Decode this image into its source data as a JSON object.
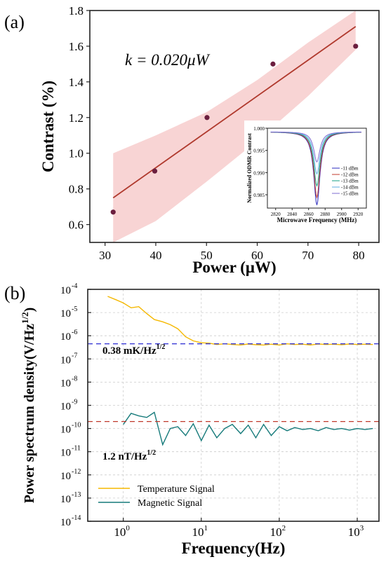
{
  "panel_a": {
    "label": "(a)",
    "annotation": "k = 0.020μW"
  },
  "panel_b": {
    "label": "(b)",
    "annotation_temperature": "0.38 mK/Hz",
    "annotation_magnetic": "1.2 nT/Hz",
    "annotation_sup": "1/2"
  },
  "chart_data": [
    {
      "type": "scatter",
      "id": "contrast_vs_power",
      "xlabel": "Power (μW)",
      "ylabel": "Contrast (%)",
      "xlim": [
        27,
        84
      ],
      "ylim": [
        0.5,
        1.8
      ],
      "xticks": [
        30,
        40,
        50,
        60,
        70,
        80
      ],
      "yticks": [
        0.6,
        0.8,
        1.0,
        1.2,
        1.4,
        1.6,
        1.8
      ],
      "points": [
        {
          "x": 31.6,
          "y": 0.67
        },
        {
          "x": 39.8,
          "y": 0.9
        },
        {
          "x": 50.1,
          "y": 1.2
        },
        {
          "x": 63.1,
          "y": 1.5
        },
        {
          "x": 79.4,
          "y": 1.6
        }
      ],
      "fit": {
        "x": [
          31.6,
          79.4
        ],
        "y": [
          0.75,
          1.71
        ],
        "color": "#b03a2e"
      },
      "band": {
        "x": [
          31.6,
          40,
          50,
          60,
          70,
          79.4
        ],
        "upper": [
          1.0,
          1.1,
          1.23,
          1.41,
          1.62,
          1.83
        ],
        "lower": [
          0.5,
          0.62,
          0.84,
          1.07,
          1.32,
          1.58
        ],
        "color": "#f6c9c9"
      },
      "point_color": "#6b1f3f"
    },
    {
      "type": "line",
      "id": "inset_odmr",
      "xlabel": "Microwave Frequency (MHz)",
      "ylabel": "Normalized ODMR Contrast",
      "xlim": [
        2810,
        2930
      ],
      "ylim": [
        0.982,
        1.0
      ],
      "xticks": [
        2820,
        2840,
        2860,
        2880,
        2900,
        2920
      ],
      "yticks": [
        0.985,
        0.99,
        0.995,
        1.0
      ],
      "ytick_labels": [
        "0.985",
        "0.990",
        "0.995",
        "1.000"
      ],
      "center": 2870,
      "series": [
        {
          "name": "-11 dBm",
          "depth": 0.0165,
          "color": "#2b2bbf"
        },
        {
          "name": "-12 dBm",
          "depth": 0.0148,
          "color": "#c0392b"
        },
        {
          "name": "-13 dBm",
          "depth": 0.0122,
          "color": "#16a085"
        },
        {
          "name": "-14 dBm",
          "depth": 0.0095,
          "color": "#5dade2"
        },
        {
          "name": "-15 dBm",
          "depth": 0.0068,
          "color": "#7d6bd1"
        }
      ]
    },
    {
      "type": "line",
      "id": "psd",
      "xlabel": "Frequency(Hz)",
      "ylabel": "Power spectrum density(V/Hz",
      "ylabel_sup": "1/2",
      "ylabel_end": ")",
      "xscale": "log",
      "yscale": "log",
      "xlim": [
        0.35,
        1900
      ],
      "ylim": [
        1e-14,
        0.0001
      ],
      "xticks": [
        1,
        10,
        100,
        1000
      ],
      "xtick_bases": [
        "10",
        "10",
        "10",
        "10"
      ],
      "xtick_exps": [
        "0",
        "1",
        "2",
        "3"
      ],
      "yticks": [
        1e-14,
        1e-13,
        1e-12,
        1e-11,
        1e-10,
        1e-09,
        1e-08,
        1e-07,
        1e-06,
        1e-05,
        0.0001
      ],
      "ytick_exps": [
        "-14",
        "-13",
        "-12",
        "-11",
        "-10",
        "-9",
        "-8",
        "-7",
        "-6",
        "-5",
        "-4"
      ],
      "grid": true,
      "legend_position": "bottom-left",
      "reference_lines": [
        {
          "y": 4.5e-07,
          "color": "#3b3bd6"
        },
        {
          "y": 2e-10,
          "color": "#c0392b"
        }
      ],
      "series": [
        {
          "name": "Temperature Signal",
          "color": "#f5b800",
          "x": [
            0.63,
            0.8,
            1.0,
            1.26,
            1.58,
            2.0,
            2.5,
            3.2,
            4.0,
            5.0,
            6.3,
            7.9,
            10,
            12.6,
            15.8,
            20,
            25,
            32,
            40,
            50,
            63,
            79,
            100,
            126,
            158,
            200,
            251,
            316,
            398,
            500,
            631,
            794,
            1000,
            1259,
            1585
          ],
          "y": [
            5e-05,
            3.6e-05,
            2.6e-05,
            1.6e-05,
            1.8e-05,
            9e-06,
            5e-06,
            4e-06,
            3e-06,
            2e-06,
            9e-07,
            6e-07,
            5e-07,
            4.8e-07,
            4.2e-07,
            4.5e-07,
            4.2e-07,
            4e-07,
            4.4e-07,
            4.1e-07,
            4e-07,
            4.3e-07,
            4e-07,
            4.5e-07,
            4.2e-07,
            4.3e-07,
            4e-07,
            4.4e-07,
            4.2e-07,
            4.3e-07,
            4.1e-07,
            4.4e-07,
            4.2e-07,
            4.3e-07,
            4.2e-07
          ]
        },
        {
          "name": "Magnetic Signal",
          "color": "#157a7a",
          "x": [
            1.0,
            1.26,
            1.58,
            2.0,
            2.5,
            3.2,
            4.0,
            5.0,
            6.3,
            7.9,
            10,
            12.6,
            15.8,
            20,
            25,
            32,
            40,
            50,
            63,
            79,
            100,
            126,
            158,
            200,
            251,
            316,
            398,
            500,
            631,
            794,
            1000,
            1259,
            1585
          ],
          "y": [
            1.5e-10,
            4.5e-10,
            3.5e-10,
            3e-10,
            5e-10,
            2e-11,
            1e-10,
            1.2e-10,
            5e-11,
            1.6e-10,
            3e-11,
            1.4e-10,
            4e-11,
            1e-10,
            1.5e-10,
            6e-11,
            1.4e-10,
            4e-11,
            1.5e-10,
            5e-11,
            1.2e-10,
            8e-11,
            1.1e-10,
            9e-11,
            1e-10,
            8e-11,
            1.1e-10,
            9e-11,
            1e-10,
            8.5e-11,
            1e-10,
            9e-11,
            1e-10
          ]
        }
      ]
    }
  ]
}
